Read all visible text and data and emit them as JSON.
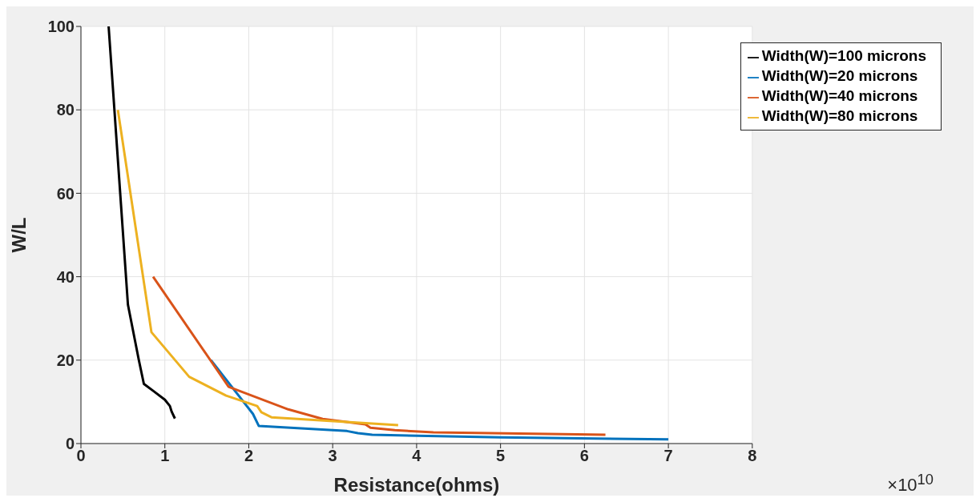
{
  "chart_data": {
    "type": "line",
    "xlabel": "Resistance(ohms)",
    "ylabel": "W/L",
    "annotations": [
      "×10$^{10}$"
    ],
    "xlim": [
      0,
      8
    ],
    "xticks": [
      0,
      1,
      2,
      3,
      4,
      5,
      6,
      7,
      8
    ],
    "ylim": [
      0,
      100
    ],
    "yticks": [
      0,
      20,
      40,
      60,
      80,
      100
    ],
    "grid": true,
    "legend": "top right",
    "line_style": "solid",
    "series": [
      {
        "name": "Width(W)=20 microns",
        "color": "#0072bd",
        "x": [
          1.55,
          2.05,
          2.12,
          3.17,
          3.3,
          3.47,
          5.0,
          7.0
        ],
        "values": [
          20,
          7.1,
          4.2,
          3.0,
          2.5,
          2.1,
          1.5,
          1.0
        ]
      },
      {
        "name": "Width(W)=40 microns",
        "color": "#d95319",
        "x": [
          0.86,
          1.76,
          2.47,
          2.88,
          3.39,
          3.45,
          3.74,
          4.2,
          6.25
        ],
        "values": [
          40,
          13.6,
          8.2,
          5.9,
          4.6,
          3.8,
          3.2,
          2.7,
          2.1
        ]
      },
      {
        "name": "Width(W)=80 microns",
        "color": "#edb120",
        "x": [
          0.44,
          0.84,
          1.29,
          1.73,
          2.1,
          2.15,
          2.27,
          3.78
        ],
        "values": [
          80,
          26.7,
          16,
          11.5,
          9.0,
          7.5,
          6.3,
          4.4
        ]
      },
      {
        "name": "Width(W)=100 microns",
        "color": "#000000",
        "x": [
          0.33,
          0.56,
          0.69,
          0.75,
          0.87,
          1.0,
          1.06,
          1.08,
          1.12
        ],
        "values": [
          100,
          33.3,
          20,
          14.3,
          12.5,
          10.5,
          9.0,
          7.7,
          6.0
        ]
      }
    ]
  }
}
